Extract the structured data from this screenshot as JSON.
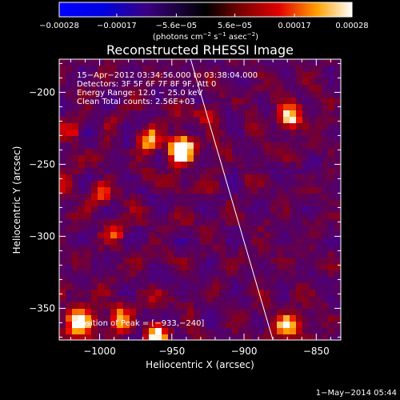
{
  "chart_data": {
    "type": "heatmap",
    "title": "Reconstructed RHESSI Image",
    "xlabel": "Heliocentric X (arcsec)",
    "ylabel": "Heliocentric Y (arcsec)",
    "xlim": [
      -1028,
      -833
    ],
    "ylim": [
      -372,
      -177
    ],
    "xticks": [
      -1000,
      -950,
      -900,
      -850
    ],
    "xtick_labels": [
      "−1000",
      "−950",
      "−900",
      "−850"
    ],
    "yticks": [
      -200,
      -250,
      -300,
      -350
    ],
    "ytick_labels": [
      "−200",
      "−250",
      "−300",
      "−350"
    ],
    "colorbar": {
      "range": [
        -0.00028,
        0.00028
      ],
      "ticks": [
        -0.00028,
        -0.00017,
        -5.6e-05,
        5.6e-05,
        0.00017,
        0.00028
      ],
      "tick_labels": [
        "−0.00028",
        "−0.00017",
        "−5.6e−05",
        "5.6e−05",
        "0.00017",
        "0.00028"
      ],
      "label_parts": [
        "(photons cm",
        "−2",
        " s",
        "−1",
        " asec",
        "−2",
        ")"
      ]
    },
    "annotations": {
      "lines": [
        "15−Apr−2012 03:34:56.000 to 03:38:04.000",
        "Detectors: 3F 5F 6F 7F 8F 9F, Att 0",
        "Energy Range: 12.0 − 25.0 keV",
        "Clean    Total counts: 2.56E+03"
      ],
      "peak": "Position of Peak = [−933,−240]"
    },
    "peak_position": [
      -933,
      -240
    ],
    "limb_line": [
      [
        -937,
        -177
      ],
      [
        -880,
        -372
      ]
    ],
    "grid": false,
    "sources": [
      {
        "x": -944,
        "y": -240,
        "amp": 1.0,
        "sigma": 8
      },
      {
        "x": -965,
        "y": -233,
        "amp": 0.6,
        "sigma": 6
      },
      {
        "x": -868,
        "y": -217,
        "amp": 0.75,
        "sigma": 7
      },
      {
        "x": -1015,
        "y": -360,
        "amp": 0.85,
        "sigma": 9
      },
      {
        "x": -985,
        "y": -357,
        "amp": 0.55,
        "sigma": 7
      },
      {
        "x": -960,
        "y": -368,
        "amp": 0.75,
        "sigma": 6
      },
      {
        "x": -870,
        "y": -363,
        "amp": 0.7,
        "sigma": 8
      },
      {
        "x": -1000,
        "y": -270,
        "amp": 0.45,
        "sigma": 6
      },
      {
        "x": -990,
        "y": -296,
        "amp": 0.45,
        "sigma": 6
      },
      {
        "x": -1020,
        "y": -227,
        "amp": 0.4,
        "sigma": 5
      },
      {
        "x": -1023,
        "y": -265,
        "amp": 0.35,
        "sigma": 5
      },
      {
        "x": -927,
        "y": -215,
        "amp": 0.35,
        "sigma": 5
      }
    ]
  },
  "footer": {
    "timestamp": "1−May−2014 05:44"
  }
}
